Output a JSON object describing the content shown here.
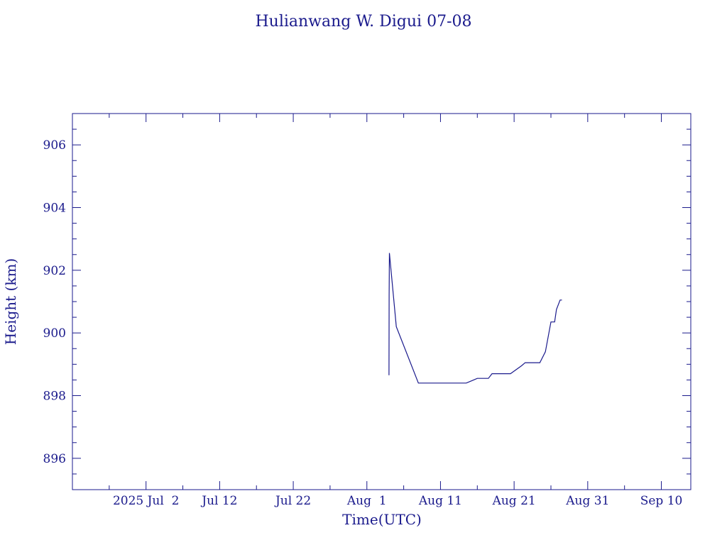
{
  "chart_data": {
    "type": "line",
    "title": "Hulianwang W. Digui 07-08",
    "xlabel": "Time(UTC)",
    "ylabel": "Height (km)",
    "color": "#1a1a8c",
    "xlim": [
      "2025-06-22",
      "2025-09-14"
    ],
    "ylim": [
      895,
      907
    ],
    "x_ticks": [
      {
        "value": "2025-07-02",
        "label": "2025 Jul  2"
      },
      {
        "value": "2025-07-12",
        "label": "Jul 12"
      },
      {
        "value": "2025-07-22",
        "label": "Jul 22"
      },
      {
        "value": "2025-08-01",
        "label": "Aug  1"
      },
      {
        "value": "2025-08-11",
        "label": "Aug 11"
      },
      {
        "value": "2025-08-21",
        "label": "Aug 21"
      },
      {
        "value": "2025-08-31",
        "label": "Aug 31"
      },
      {
        "value": "2025-09-10",
        "label": "Sep 10"
      }
    ],
    "x_minor_ticks": [
      "2025-06-27",
      "2025-07-07",
      "2025-07-17",
      "2025-07-27",
      "2025-08-06",
      "2025-08-16",
      "2025-08-26",
      "2025-09-05"
    ],
    "y_ticks": [
      {
        "value": 896,
        "label": "896"
      },
      {
        "value": 898,
        "label": "898"
      },
      {
        "value": 900,
        "label": "900"
      },
      {
        "value": 902,
        "label": "902"
      },
      {
        "value": 904,
        "label": "904"
      },
      {
        "value": 906,
        "label": "906"
      }
    ],
    "y_minor_step": 0.5,
    "series": [
      {
        "x": [
          "2025-08-04T00:00",
          "2025-08-04T00:30",
          "2025-08-04T01:30",
          "2025-08-05T00:00",
          "2025-08-08T00:00",
          "2025-08-14T12:00",
          "2025-08-15T12:00",
          "2025-08-16T00:00",
          "2025-08-17T12:00",
          "2025-08-18T00:00",
          "2025-08-18T12:00",
          "2025-08-20T12:00",
          "2025-08-22T00:00",
          "2025-08-22T12:00",
          "2025-08-24T12:00",
          "2025-08-25T06:00",
          "2025-08-26T00:00",
          "2025-08-26T12:00",
          "2025-08-26T18:00",
          "2025-08-27T06:00",
          "2025-08-27T12:00"
        ],
        "y": [
          898.65,
          901.2,
          902.55,
          900.2,
          898.4,
          898.4,
          898.5,
          898.55,
          898.55,
          898.7,
          898.7,
          898.7,
          898.95,
          899.05,
          899.05,
          899.4,
          900.35,
          900.35,
          900.75,
          901.05,
          901.05
        ]
      }
    ]
  }
}
